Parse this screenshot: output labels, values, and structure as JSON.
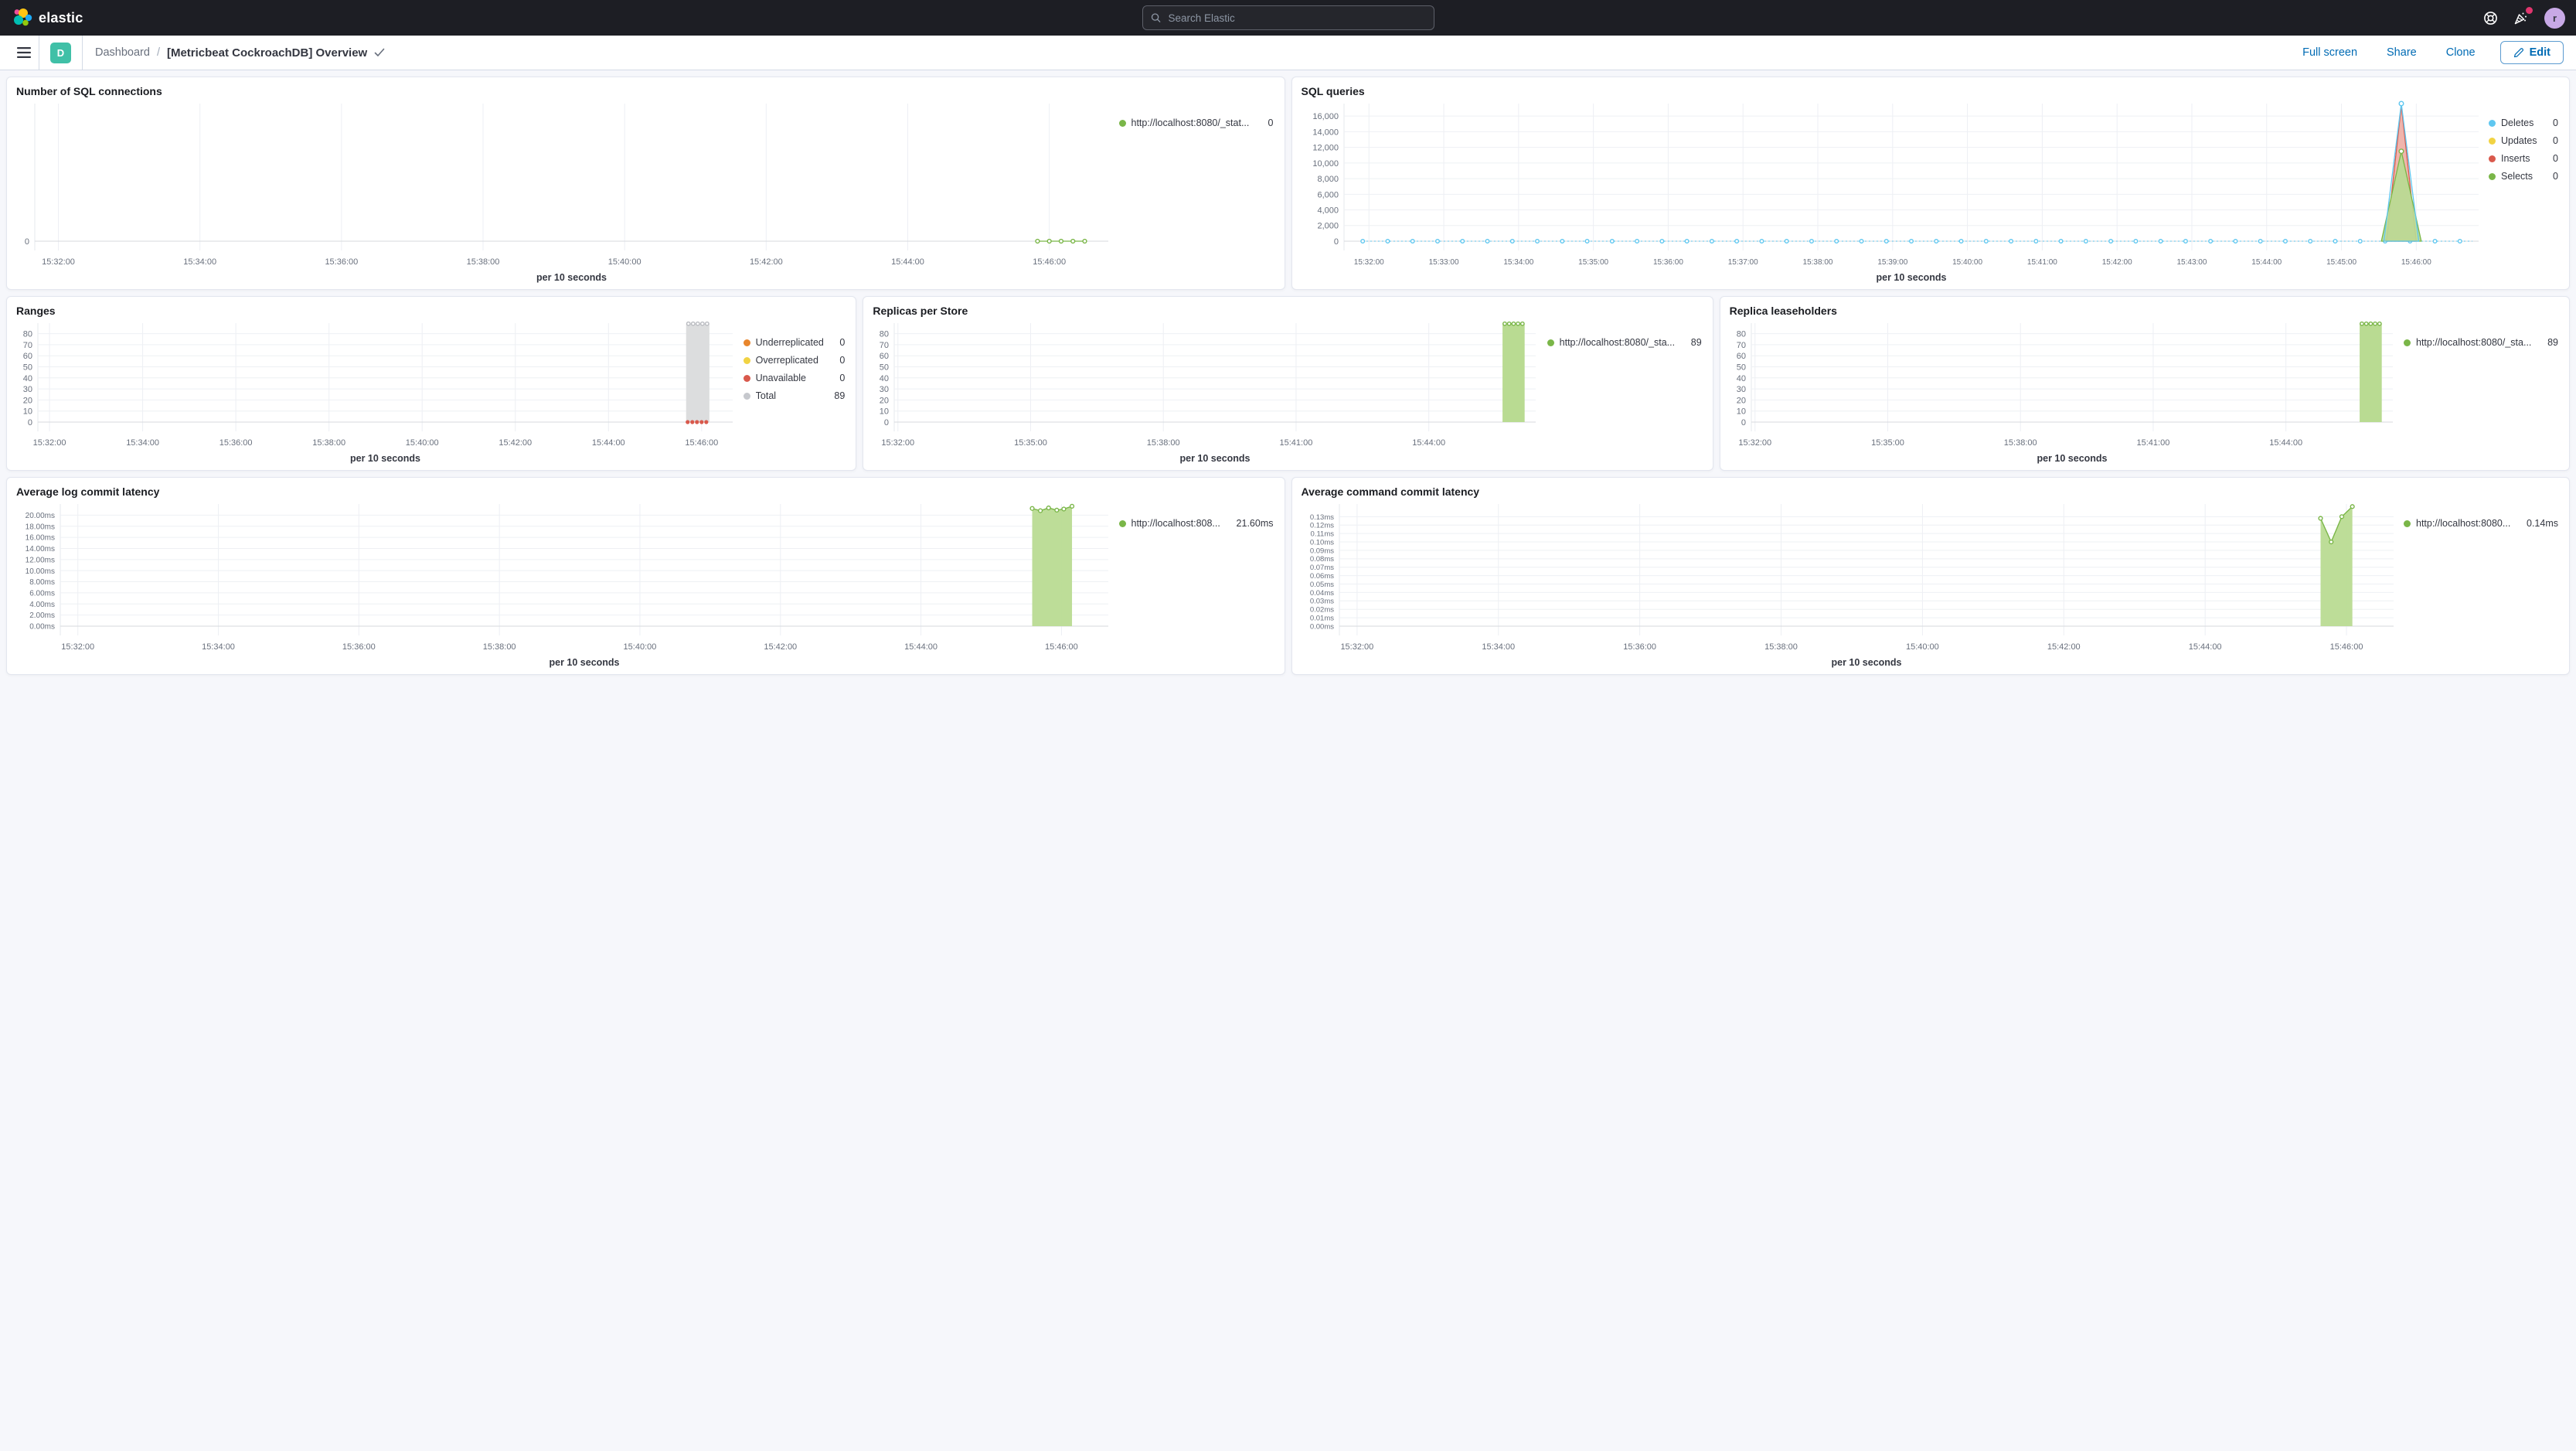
{
  "header": {
    "brand": "elastic",
    "search_placeholder": "Search Elastic",
    "user_initial": "r"
  },
  "nav": {
    "app_badge_letter": "D",
    "breadcrumb_app": "Dashboard",
    "breadcrumb_sep": "/",
    "page_title": "[Metricbeat CockroachDB] Overview",
    "actions": {
      "full_screen": "Full screen",
      "share": "Share",
      "clone": "Clone",
      "edit": "Edit"
    }
  },
  "colors": {
    "accent_blue": "#006bb4",
    "header_bg": "#1d1e24",
    "badge_teal": "#40c0a7",
    "notification_pink": "#e0366e",
    "series_green": "#7ab648",
    "series_green_fill": "#b9db92",
    "series_blue": "#5fc7f0",
    "series_red": "#d9594c",
    "series_yellow": "#f1d343",
    "series_orange": "#e8862d",
    "series_gray": "#b9bbc0"
  },
  "panels": [
    {
      "id": "sql-connections",
      "title": "Number of SQL connections",
      "legend": [
        {
          "label": "http://localhost:8080/_stat...",
          "value": "0",
          "color": "#7ab648"
        }
      ],
      "chart": {
        "type": "line",
        "xlabel": "per 10 seconds",
        "x_domain": [
          "15:31:40",
          "15:46:50"
        ],
        "x_ticks": [
          "15:32:00",
          "15:34:00",
          "15:36:00",
          "15:38:00",
          "15:40:00",
          "15:42:00",
          "15:44:00",
          "15:46:00"
        ],
        "y_max": 1,
        "y_ticks": [
          0
        ],
        "y_tick_labels": [
          "0"
        ],
        "series": [
          {
            "kind": "markers",
            "name": "http://localhost:8080/_stat...",
            "color": "#7ab648",
            "line": true,
            "value": 0,
            "times": [
              "15:45:50",
              "15:46:00",
              "15:46:10",
              "15:46:20",
              "15:46:30"
            ]
          }
        ]
      }
    },
    {
      "id": "sql-queries",
      "title": "SQL queries",
      "legend": [
        {
          "label": "Deletes",
          "value": "0",
          "color": "#5fc7f0"
        },
        {
          "label": "Updates",
          "value": "0",
          "color": "#f1d343"
        },
        {
          "label": "Inserts",
          "value": "0",
          "color": "#d9594c"
        },
        {
          "label": "Selects",
          "value": "0",
          "color": "#7ab648"
        }
      ],
      "chart": {
        "type": "area",
        "xlabel": "per 10 seconds",
        "x_tick_font": 10,
        "x_domain": [
          "15:31:40",
          "15:46:50"
        ],
        "x_ticks": [
          "15:32:00",
          "15:33:00",
          "15:34:00",
          "15:35:00",
          "15:36:00",
          "15:37:00",
          "15:38:00",
          "15:39:00",
          "15:40:00",
          "15:41:00",
          "15:42:00",
          "15:43:00",
          "15:44:00",
          "15:45:00",
          "15:46:00"
        ],
        "y_max": 17600,
        "y_ticks": [
          0,
          2000,
          4000,
          6000,
          8000,
          10000,
          12000,
          14000,
          16000
        ],
        "y_tick_labels": [
          "0",
          "2,000",
          "4,000",
          "6,000",
          "8,000",
          "10,000",
          "12,000",
          "14,000",
          "16,000"
        ],
        "series": [
          {
            "kind": "markerline",
            "name": "Deletes",
            "color": "#5fc7f0",
            "value": 0,
            "start": "15:31:55",
            "end": "15:46:45",
            "step": 20
          },
          {
            "kind": "spike",
            "name": "Inserts",
            "stroke": "#d9594c",
            "fill": "#eda79e",
            "fill_opacity": 0.85,
            "base": [
              "15:45:36",
              "15:46:00"
            ],
            "apex": "15:45:48",
            "peak": 17350
          },
          {
            "kind": "spike",
            "name": "Selects",
            "stroke": "#7ab648",
            "fill": "#b9db92",
            "fill_opacity": 0.92,
            "base": [
              "15:45:32",
              "15:46:04"
            ],
            "apex": "15:45:48",
            "peak": 11500,
            "marker": true
          },
          {
            "kind": "spike",
            "name": "Deletes spike",
            "stroke": "#5fc7f0",
            "fill": "none",
            "base": [
              "15:45:34",
              "15:46:02"
            ],
            "apex": "15:45:48",
            "peak": 17600,
            "marker": true
          }
        ]
      }
    },
    {
      "id": "ranges",
      "title": "Ranges",
      "legend": [
        {
          "label": "Underreplicated",
          "value": "0",
          "color": "#e8862d"
        },
        {
          "label": "Overreplicated",
          "value": "0",
          "color": "#f1d343"
        },
        {
          "label": "Unavailable",
          "value": "0",
          "color": "#d9594c"
        },
        {
          "label": "Total",
          "value": "89",
          "color": "#c6c8cd"
        }
      ],
      "chart": {
        "type": "bar",
        "xlabel": "per 10 seconds",
        "x_domain": [
          "15:31:45",
          "15:46:40"
        ],
        "x_ticks": [
          "15:32:00",
          "15:34:00",
          "15:36:00",
          "15:38:00",
          "15:40:00",
          "15:42:00",
          "15:44:00",
          "15:46:00"
        ],
        "y_max": 89.5,
        "y_ticks": [
          0,
          10,
          20,
          30,
          40,
          50,
          60,
          70,
          80
        ],
        "y_tick_labels": [
          "0",
          "10",
          "20",
          "30",
          "40",
          "50",
          "60",
          "70",
          "80"
        ],
        "series": [
          {
            "kind": "bar",
            "name": "Total",
            "fill": "#dcddde",
            "start": "15:45:40",
            "end": "15:46:10",
            "value": 89,
            "top_markers": 5,
            "top_marker_color": "#b9bbc0"
          },
          {
            "kind": "markers",
            "name": "Unavailable",
            "color": "#d9594c",
            "filled": true,
            "value": 0,
            "times": [
              "15:45:42",
              "15:45:48",
              "15:45:54",
              "15:46:00",
              "15:46:06"
            ]
          }
        ]
      }
    },
    {
      "id": "replicas-per-store",
      "title": "Replicas per Store",
      "legend": [
        {
          "label": "http://localhost:8080/_sta...",
          "value": "89",
          "color": "#7ab648"
        }
      ],
      "chart": {
        "type": "bar",
        "xlabel": "per 10 seconds",
        "x_domain": [
          "15:31:55",
          "15:46:25"
        ],
        "x_ticks": [
          "15:32:00",
          "15:35:00",
          "15:38:00",
          "15:41:00",
          "15:44:00"
        ],
        "y_max": 89.5,
        "y_ticks": [
          0,
          10,
          20,
          30,
          40,
          50,
          60,
          70,
          80
        ],
        "y_tick_labels": [
          "0",
          "10",
          "20",
          "30",
          "40",
          "50",
          "60",
          "70",
          "80"
        ],
        "series": [
          {
            "kind": "bar",
            "name": "http://localhost:8080/_sta...",
            "fill": "#b9db92",
            "start": "15:45:40",
            "end": "15:46:10",
            "value": 89,
            "top_markers": 5,
            "top_marker_color": "#7ab648"
          }
        ]
      }
    },
    {
      "id": "replica-leaseholders",
      "title": "Replica leaseholders",
      "legend": [
        {
          "label": "http://localhost:8080/_sta...",
          "value": "89",
          "color": "#7ab648"
        }
      ],
      "chart": {
        "type": "bar",
        "xlabel": "per 10 seconds",
        "x_domain": [
          "15:31:55",
          "15:46:25"
        ],
        "x_ticks": [
          "15:32:00",
          "15:35:00",
          "15:38:00",
          "15:41:00",
          "15:44:00"
        ],
        "y_max": 89.5,
        "y_ticks": [
          0,
          10,
          20,
          30,
          40,
          50,
          60,
          70,
          80
        ],
        "y_tick_labels": [
          "0",
          "10",
          "20",
          "30",
          "40",
          "50",
          "60",
          "70",
          "80"
        ],
        "series": [
          {
            "kind": "bar",
            "name": "http://localhost:8080/_sta...",
            "fill": "#b9db92",
            "start": "15:45:40",
            "end": "15:46:10",
            "value": 89,
            "top_markers": 5,
            "top_marker_color": "#7ab648"
          }
        ]
      }
    },
    {
      "id": "avg-log-commit-latency",
      "title": "Average log commit latency",
      "legend": [
        {
          "label": "http://localhost:808...",
          "value": "21.60ms",
          "color": "#7ab648"
        }
      ],
      "chart": {
        "type": "area",
        "xlabel": "per 10 seconds",
        "y_tick_font": 10,
        "x_domain": [
          "15:31:45",
          "15:46:40"
        ],
        "x_ticks": [
          "15:32:00",
          "15:34:00",
          "15:36:00",
          "15:38:00",
          "15:40:00",
          "15:42:00",
          "15:44:00",
          "15:46:00"
        ],
        "y_max": 22,
        "y_ticks": [
          0,
          2,
          4,
          6,
          8,
          10,
          12,
          14,
          16,
          18,
          20
        ],
        "y_tick_labels": [
          "0.00ms",
          "2.00ms",
          "4.00ms",
          "6.00ms",
          "8.00ms",
          "10.00ms",
          "12.00ms",
          "14.00ms",
          "16.00ms",
          "18.00ms",
          "20.00ms"
        ],
        "series": [
          {
            "kind": "area",
            "name": "http://localhost:808...",
            "stroke": "#7ab648",
            "fill": "#b9db92",
            "fill_opacity": 0.95,
            "markers": true,
            "points": [
              [
                "15:45:35",
                21.2
              ],
              [
                "15:45:42",
                20.8
              ],
              [
                "15:45:49",
                21.3
              ],
              [
                "15:45:56",
                20.9
              ],
              [
                "15:46:02",
                21.1
              ],
              [
                "15:46:09",
                21.6
              ]
            ]
          }
        ]
      }
    },
    {
      "id": "avg-command-commit-latency",
      "title": "Average command commit latency",
      "legend": [
        {
          "label": "http://localhost:8080...",
          "value": "0.14ms",
          "color": "#7ab648"
        }
      ],
      "chart": {
        "type": "area",
        "xlabel": "per 10 seconds",
        "y_tick_font": 9.5,
        "x_domain": [
          "15:31:45",
          "15:46:40"
        ],
        "x_ticks": [
          "15:32:00",
          "15:34:00",
          "15:36:00",
          "15:38:00",
          "15:40:00",
          "15:42:00",
          "15:44:00",
          "15:46:00"
        ],
        "y_max": 0.145,
        "y_ticks": [
          0,
          0.01,
          0.02,
          0.03,
          0.04,
          0.05,
          0.06,
          0.07,
          0.08,
          0.09,
          0.1,
          0.11,
          0.12,
          0.13
        ],
        "y_tick_labels": [
          "0.00ms",
          "0.01ms",
          "0.02ms",
          "0.03ms",
          "0.04ms",
          "0.05ms",
          "0.06ms",
          "0.07ms",
          "0.08ms",
          "0.09ms",
          "0.10ms",
          "0.11ms",
          "0.12ms",
          "0.13ms"
        ],
        "series": [
          {
            "kind": "area",
            "name": "http://localhost:8080...",
            "stroke": "#7ab648",
            "fill": "#b9db92",
            "fill_opacity": 0.95,
            "markers": true,
            "points": [
              [
                "15:45:38",
                0.128
              ],
              [
                "15:45:47",
                0.1
              ],
              [
                "15:45:56",
                0.13
              ],
              [
                "15:46:05",
                0.142
              ]
            ]
          }
        ]
      }
    }
  ]
}
